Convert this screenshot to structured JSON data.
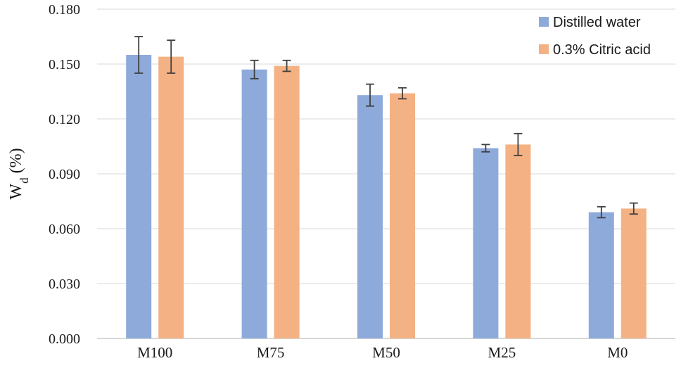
{
  "chart_data": {
    "type": "bar",
    "title": "",
    "xlabel": "",
    "ylabel": {
      "main": "W",
      "subscript": "d",
      "suffix": " (%)"
    },
    "categories": [
      "M100",
      "M75",
      "M50",
      "M25",
      "M0"
    ],
    "ylim": [
      0,
      0.18
    ],
    "yticks": [
      "0.000",
      "0.030",
      "0.060",
      "0.090",
      "0.120",
      "0.150",
      "0.180"
    ],
    "ytick_values": [
      0,
      0.03,
      0.06,
      0.09,
      0.12,
      0.15,
      0.18
    ],
    "grid": true,
    "legend_position": "top-right",
    "series": [
      {
        "name": "Distilled water",
        "color": "#8eaadb",
        "values": [
          0.155,
          0.147,
          0.133,
          0.104,
          0.069
        ],
        "errors": [
          0.01,
          0.005,
          0.006,
          0.002,
          0.003
        ]
      },
      {
        "name": "0.3% Citric acid",
        "color": "#f4b183",
        "values": [
          0.154,
          0.149,
          0.134,
          0.106,
          0.071
        ],
        "errors": [
          0.009,
          0.003,
          0.003,
          0.006,
          0.003
        ]
      }
    ]
  }
}
